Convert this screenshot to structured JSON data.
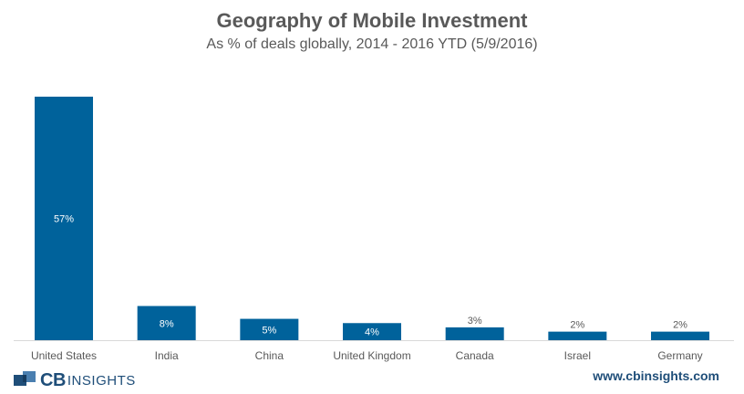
{
  "chart_data": {
    "type": "bar",
    "title": "Geography of Mobile Investment",
    "subtitle": "As % of deals globally, 2014 - 2016 YTD (5/9/2016)",
    "categories": [
      "United States",
      "India",
      "China",
      "United Kingdom",
      "Canada",
      "Israel",
      "Germany"
    ],
    "values": [
      57,
      8,
      5,
      4,
      3,
      2,
      2
    ],
    "value_labels": [
      "57%",
      "8%",
      "5%",
      "4%",
      "3%",
      "2%",
      "2%"
    ],
    "xlabel": "",
    "ylabel": "",
    "ylim": [
      0,
      57
    ],
    "grid": false,
    "bar_color": "#00629b",
    "text_color": "#595959"
  },
  "footer": {
    "logo_cb": "CB",
    "logo_insights": "INSIGHTS",
    "website": "www.cbinsights.com",
    "brand_color": "#1f4e79"
  }
}
